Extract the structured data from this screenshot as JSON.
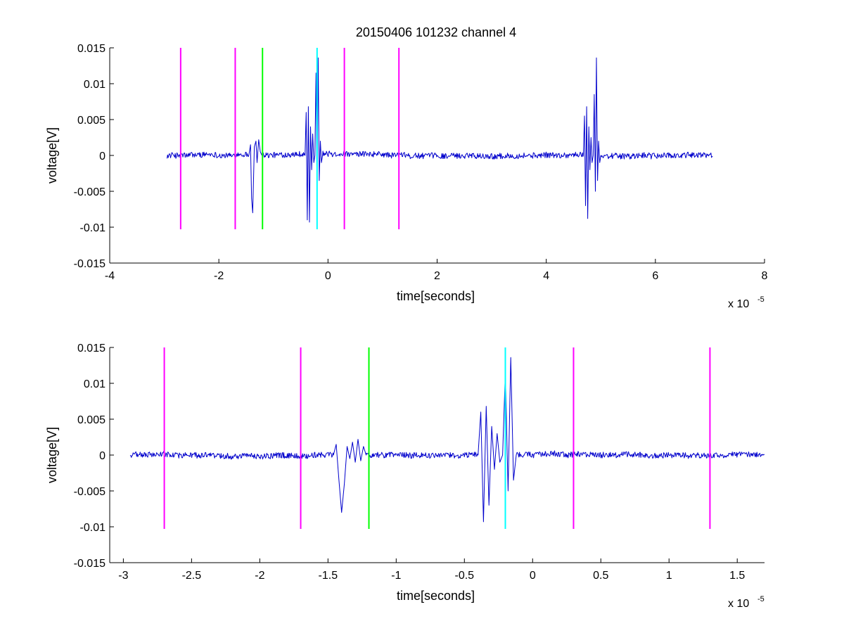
{
  "figure": {
    "title": "20150406 101232 channel 4"
  },
  "chart_data": [
    {
      "type": "line",
      "title": "20150406 101232 channel 4",
      "xlabel": "time[seconds]",
      "ylabel": "voltage[V]",
      "x_exponent_label": "x 10",
      "x_exponent_power": "-5",
      "xlim": [
        -4,
        8
      ],
      "ylim": [
        -0.015,
        0.015
      ],
      "x_ticks": [
        -4,
        -2,
        0,
        2,
        4,
        6,
        8
      ],
      "x_tick_labels": [
        "-4",
        "-2",
        "0",
        "2",
        "4",
        "6",
        "8"
      ],
      "y_ticks": [
        0.015,
        0.01,
        0.005,
        0,
        -0.005,
        -0.01,
        -0.015
      ],
      "y_tick_labels": [
        "0.015",
        "0.01",
        "0.005",
        "0",
        "-0.005",
        "-0.01",
        "-0.015"
      ],
      "grid": false,
      "series": [
        {
          "color": "#0000cc",
          "x_range": [
            -2.95,
            7.05
          ],
          "noise_amplitude": 0.0004,
          "bursts": [
            {
              "x": [
                -1.45,
                -1.42,
                -1.4,
                -1.38,
                -1.35,
                -1.32,
                -1.3,
                -1.27,
                -1.24,
                -1.21
              ],
              "y": [
                0.0,
                0.0015,
                -0.006,
                -0.008,
                0.0012,
                0.002,
                -0.001,
                0.0022,
                0.0005,
                0.0
              ]
            },
            {
              "x": [
                -0.42,
                -0.4,
                -0.38,
                -0.36,
                -0.34,
                -0.32,
                -0.3,
                -0.28,
                -0.26,
                -0.24,
                -0.22,
                -0.2,
                -0.18,
                -0.16,
                -0.14,
                -0.12,
                -0.1
              ],
              "y": [
                0.0,
                0.006,
                -0.009,
                0.0068,
                -0.0093,
                0.004,
                -0.002,
                0.003,
                -0.001,
                0.0,
                0.0115,
                -0.005,
                0.0136,
                -0.0035,
                0.002,
                -0.001,
                0.0
              ]
            },
            {
              "x": [
                4.68,
                4.7,
                4.72,
                4.74,
                4.76,
                4.78,
                4.8,
                4.82,
                4.84,
                4.86,
                4.88,
                4.9,
                4.92,
                4.94,
                4.96,
                4.98,
                5.0
              ],
              "y": [
                0.0,
                0.0055,
                -0.007,
                0.0068,
                -0.0088,
                0.004,
                -0.002,
                0.0025,
                -0.001,
                0.0,
                0.0085,
                -0.005,
                0.0136,
                -0.0035,
                0.002,
                -0.001,
                0.0
              ]
            }
          ]
        }
      ],
      "markers": [
        {
          "x": -2.7,
          "color": "#ff00ff",
          "y_range": [
            -0.0103,
            0.015
          ]
        },
        {
          "x": -1.7,
          "color": "#ff00ff",
          "y_range": [
            -0.0103,
            0.015
          ]
        },
        {
          "x": -1.2,
          "color": "#00ff00",
          "y_range": [
            -0.0103,
            0.015
          ]
        },
        {
          "x": -0.2,
          "color": "#00ffff",
          "y_range": [
            -0.0103,
            0.015
          ]
        },
        {
          "x": 0.3,
          "color": "#ff00ff",
          "y_range": [
            -0.0103,
            0.015
          ]
        },
        {
          "x": 1.3,
          "color": "#ff00ff",
          "y_range": [
            -0.0103,
            0.015
          ]
        }
      ]
    },
    {
      "type": "line",
      "title": "",
      "xlabel": "time[seconds]",
      "ylabel": "voltage[V]",
      "x_exponent_label": "x 10",
      "x_exponent_power": "-5",
      "xlim": [
        -3.1,
        1.7
      ],
      "ylim": [
        -0.015,
        0.015
      ],
      "x_ticks": [
        -3,
        -2.5,
        -2,
        -1.5,
        -1,
        -0.5,
        0,
        0.5,
        1,
        1.5
      ],
      "x_tick_labels": [
        "-3",
        "-2.5",
        "-2",
        "-1.5",
        "-1",
        "-0.5",
        "0",
        "0.5",
        "1",
        "1.5"
      ],
      "y_ticks": [
        0.015,
        0.01,
        0.005,
        0,
        -0.005,
        -0.01,
        -0.015
      ],
      "y_tick_labels": [
        "0.015",
        "0.01",
        "0.005",
        "0",
        "-0.005",
        "-0.01",
        "-0.015"
      ],
      "grid": false,
      "series": [
        {
          "color": "#0000cc",
          "x_range": [
            -2.95,
            1.7
          ],
          "noise_amplitude": 0.0004,
          "bursts": [
            {
              "x": [
                -1.46,
                -1.44,
                -1.42,
                -1.4,
                -1.38,
                -1.36,
                -1.34,
                -1.32,
                -1.3,
                -1.28,
                -1.26,
                -1.24,
                -1.22
              ],
              "y": [
                0.0,
                0.0015,
                -0.0035,
                -0.008,
                -0.004,
                0.0012,
                -0.0005,
                0.0018,
                -0.001,
                0.0022,
                -0.0008,
                0.0012,
                0.0
              ]
            },
            {
              "x": [
                -0.4,
                -0.38,
                -0.36,
                -0.34,
                -0.32,
                -0.3,
                -0.28,
                -0.26,
                -0.24,
                -0.22,
                -0.2,
                -0.18,
                -0.16,
                -0.14,
                -0.12
              ],
              "y": [
                0.0,
                0.006,
                -0.0093,
                0.0068,
                -0.007,
                0.004,
                -0.002,
                0.003,
                -0.001,
                0.0,
                0.0115,
                -0.005,
                0.0136,
                -0.0035,
                0.0
              ]
            }
          ]
        }
      ],
      "markers": [
        {
          "x": -2.7,
          "color": "#ff00ff",
          "y_range": [
            -0.0103,
            0.015
          ]
        },
        {
          "x": -1.7,
          "color": "#ff00ff",
          "y_range": [
            -0.0103,
            0.015
          ]
        },
        {
          "x": -1.2,
          "color": "#00ff00",
          "y_range": [
            -0.0103,
            0.015
          ]
        },
        {
          "x": -0.2,
          "color": "#00ffff",
          "y_range": [
            -0.0103,
            0.015
          ]
        },
        {
          "x": 0.3,
          "color": "#ff00ff",
          "y_range": [
            -0.0103,
            0.015
          ]
        },
        {
          "x": 1.3,
          "color": "#ff00ff",
          "y_range": [
            -0.0103,
            0.015
          ]
        }
      ]
    }
  ]
}
